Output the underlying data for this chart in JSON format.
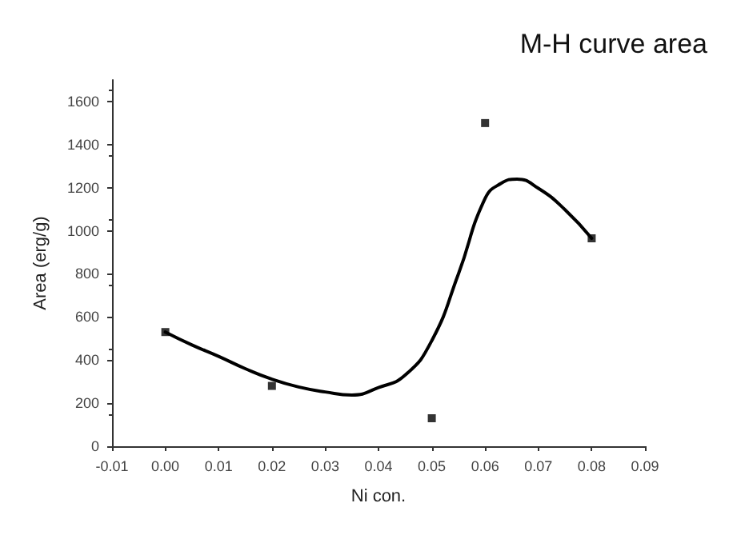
{
  "chart_data": {
    "type": "scatter",
    "title": "M-H curve area",
    "xlabel": "Ni con.",
    "ylabel": "Area (erg/g)",
    "xlim": [
      -0.01,
      0.09
    ],
    "xticks": [
      {
        "value": -0.01,
        "label": "-0.01"
      },
      {
        "value": 0,
        "label": "0.00"
      },
      {
        "value": 0.01,
        "label": "0.01"
      },
      {
        "value": 0.02,
        "label": "0.02"
      },
      {
        "value": 0.03,
        "label": "0.03"
      },
      {
        "value": 0.04,
        "label": "0.04"
      },
      {
        "value": 0.05,
        "label": "0.05"
      },
      {
        "value": 0.06,
        "label": "0.06"
      },
      {
        "value": 0.07,
        "label": "0.07"
      },
      {
        "value": 0.08,
        "label": "0.08"
      },
      {
        "value": 0.09,
        "label": "0.09"
      }
    ],
    "ylim": [
      0,
      1700
    ],
    "yticks": [
      0,
      200,
      400,
      600,
      800,
      1000,
      1200,
      1400,
      1600
    ],
    "grid": false,
    "series": [
      {
        "color": "#000000",
        "marker": "square",
        "x": [
          0,
          0.02,
          0.05,
          0.06,
          0.08
        ],
        "values": [
          530,
          280,
          130,
          1500,
          965
        ]
      },
      {
        "type": "line",
        "color": "#000000",
        "marker": "none",
        "line_style": "solid",
        "x": [
          0,
          0.005,
          0.01,
          0.015,
          0.02,
          0.025,
          0.03,
          0.035,
          0.04,
          0.045,
          0.05,
          0.055,
          0.06,
          0.063,
          0.066,
          0.07,
          0.075,
          0.08
        ],
        "values": [
          530,
          470,
          417,
          360,
          311,
          275,
          252,
          238,
          272,
          330,
          490,
          800,
          1150,
          1220,
          1240,
          1197,
          1098,
          965
        ]
      }
    ]
  }
}
